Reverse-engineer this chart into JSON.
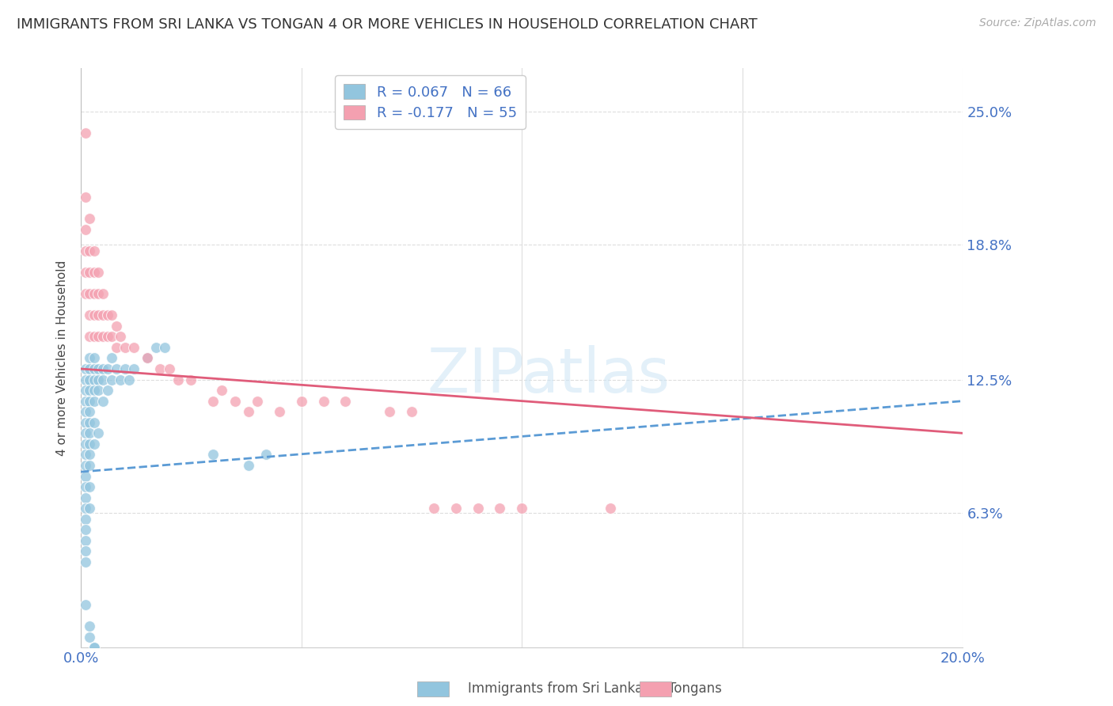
{
  "title": "IMMIGRANTS FROM SRI LANKA VS TONGAN 4 OR MORE VEHICLES IN HOUSEHOLD CORRELATION CHART",
  "source": "Source: ZipAtlas.com",
  "ylabel": "4 or more Vehicles in Household",
  "ytick_labels": [
    "25.0%",
    "18.8%",
    "12.5%",
    "6.3%"
  ],
  "ytick_values": [
    0.25,
    0.188,
    0.125,
    0.063
  ],
  "xlim": [
    0.0,
    0.2
  ],
  "ylim": [
    0.0,
    0.27
  ],
  "sri_lanka_R": 0.067,
  "sri_lanka_N": 66,
  "tongan_R": -0.177,
  "tongan_N": 55,
  "sri_lanka_color": "#92c5de",
  "tongan_color": "#f4a0b0",
  "sri_lanka_line_color": "#5b9bd5",
  "tongan_line_color": "#e05c7a",
  "legend_label_1": "Immigrants from Sri Lanka",
  "legend_label_2": "Tongans",
  "watermark_text": "ZIPatlas",
  "sri_lanka_x": [
    0.001,
    0.001,
    0.001,
    0.001,
    0.001,
    0.001,
    0.001,
    0.001,
    0.001,
    0.001,
    0.001,
    0.001,
    0.001,
    0.001,
    0.001,
    0.001,
    0.001,
    0.001,
    0.002,
    0.002,
    0.002,
    0.002,
    0.002,
    0.002,
    0.002,
    0.002,
    0.002,
    0.002,
    0.002,
    0.002,
    0.002,
    0.003,
    0.003,
    0.003,
    0.003,
    0.003,
    0.003,
    0.003,
    0.004,
    0.004,
    0.004,
    0.004,
    0.005,
    0.005,
    0.005,
    0.006,
    0.006,
    0.007,
    0.007,
    0.008,
    0.009,
    0.01,
    0.011,
    0.012,
    0.015,
    0.017,
    0.019,
    0.03,
    0.038,
    0.042,
    0.001,
    0.001,
    0.002,
    0.002,
    0.003,
    0.003
  ],
  "sri_lanka_y": [
    0.13,
    0.125,
    0.12,
    0.115,
    0.11,
    0.105,
    0.1,
    0.095,
    0.09,
    0.085,
    0.08,
    0.075,
    0.07,
    0.065,
    0.06,
    0.055,
    0.05,
    0.045,
    0.135,
    0.13,
    0.125,
    0.12,
    0.115,
    0.11,
    0.105,
    0.1,
    0.095,
    0.09,
    0.085,
    0.075,
    0.065,
    0.135,
    0.13,
    0.125,
    0.12,
    0.115,
    0.105,
    0.095,
    0.13,
    0.125,
    0.12,
    0.1,
    0.13,
    0.125,
    0.115,
    0.13,
    0.12,
    0.135,
    0.125,
    0.13,
    0.125,
    0.13,
    0.125,
    0.13,
    0.135,
    0.14,
    0.14,
    0.09,
    0.085,
    0.09,
    0.04,
    0.02,
    0.01,
    0.005,
    0.0,
    0.0
  ],
  "tongan_x": [
    0.001,
    0.001,
    0.001,
    0.001,
    0.001,
    0.001,
    0.002,
    0.002,
    0.002,
    0.002,
    0.002,
    0.002,
    0.003,
    0.003,
    0.003,
    0.003,
    0.003,
    0.004,
    0.004,
    0.004,
    0.004,
    0.005,
    0.005,
    0.005,
    0.006,
    0.006,
    0.007,
    0.007,
    0.008,
    0.008,
    0.009,
    0.01,
    0.012,
    0.015,
    0.018,
    0.02,
    0.022,
    0.025,
    0.03,
    0.032,
    0.035,
    0.038,
    0.04,
    0.045,
    0.05,
    0.055,
    0.06,
    0.07,
    0.075,
    0.08,
    0.085,
    0.09,
    0.095,
    0.1,
    0.12
  ],
  "tongan_y": [
    0.24,
    0.21,
    0.195,
    0.185,
    0.175,
    0.165,
    0.2,
    0.185,
    0.175,
    0.165,
    0.155,
    0.145,
    0.185,
    0.175,
    0.165,
    0.155,
    0.145,
    0.175,
    0.165,
    0.155,
    0.145,
    0.165,
    0.155,
    0.145,
    0.155,
    0.145,
    0.155,
    0.145,
    0.15,
    0.14,
    0.145,
    0.14,
    0.14,
    0.135,
    0.13,
    0.13,
    0.125,
    0.125,
    0.115,
    0.12,
    0.115,
    0.11,
    0.115,
    0.11,
    0.115,
    0.115,
    0.115,
    0.11,
    0.11,
    0.065,
    0.065,
    0.065,
    0.065,
    0.065,
    0.065
  ]
}
